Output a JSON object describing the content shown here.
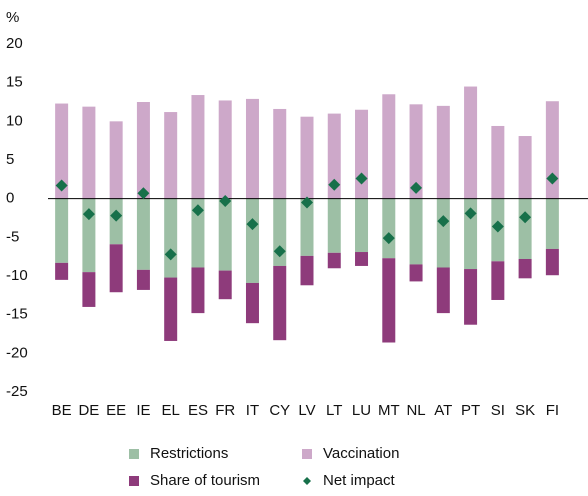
{
  "chart_data": {
    "type": "bar",
    "stacked": true,
    "y_label": "%",
    "categories": [
      "BE",
      "DE",
      "EE",
      "IE",
      "EL",
      "ES",
      "FR",
      "IT",
      "CY",
      "LV",
      "LT",
      "LU",
      "MT",
      "NL",
      "AT",
      "PT",
      "SI",
      "SK",
      "FI"
    ],
    "series": [
      {
        "name": "Restrictions",
        "color": "#9dbfa5",
        "kind": "bar",
        "values": [
          -8.3,
          -9.5,
          -5.9,
          -9.2,
          -10.2,
          -8.9,
          -9.3,
          -10.9,
          -8.7,
          -7.4,
          -7,
          -6.9,
          -7.7,
          -8.5,
          -8.9,
          -9.1,
          -8.1,
          -7.8,
          -6.5
        ]
      },
      {
        "name": "Vaccination",
        "color": "#cda8c9",
        "kind": "bar",
        "values": [
          12.3,
          11.9,
          10,
          12.5,
          11.2,
          13.4,
          12.7,
          12.9,
          11.6,
          10.6,
          11,
          11.5,
          13.5,
          12.2,
          12,
          14.5,
          9.4,
          8.1,
          12.6
        ]
      },
      {
        "name": "Share of tourism",
        "color": "#8e3b7b",
        "kind": "bar",
        "values": [
          -2.2,
          -4.5,
          -6.2,
          -2.6,
          -8.2,
          -5.9,
          -3.7,
          -5.2,
          -9.6,
          -3.8,
          -2,
          -1.8,
          -10.9,
          -2.2,
          -5.9,
          -7.2,
          -5,
          -2.5,
          -3.4
        ]
      },
      {
        "name": "Net impact",
        "color": "#17704a",
        "kind": "marker",
        "values": [
          1.7,
          -2,
          -2.2,
          0.7,
          -7.2,
          -1.5,
          -0.3,
          -3.3,
          -6.8,
          -0.5,
          1.8,
          2.6,
          -5.1,
          1.4,
          -2.9,
          -1.9,
          -3.6,
          -2.4,
          2.6
        ]
      }
    ],
    "ylim": [
      -25,
      20
    ],
    "yticks": [
      -25,
      -20,
      -15,
      -10,
      -5,
      0,
      5,
      10,
      15,
      20
    ]
  }
}
